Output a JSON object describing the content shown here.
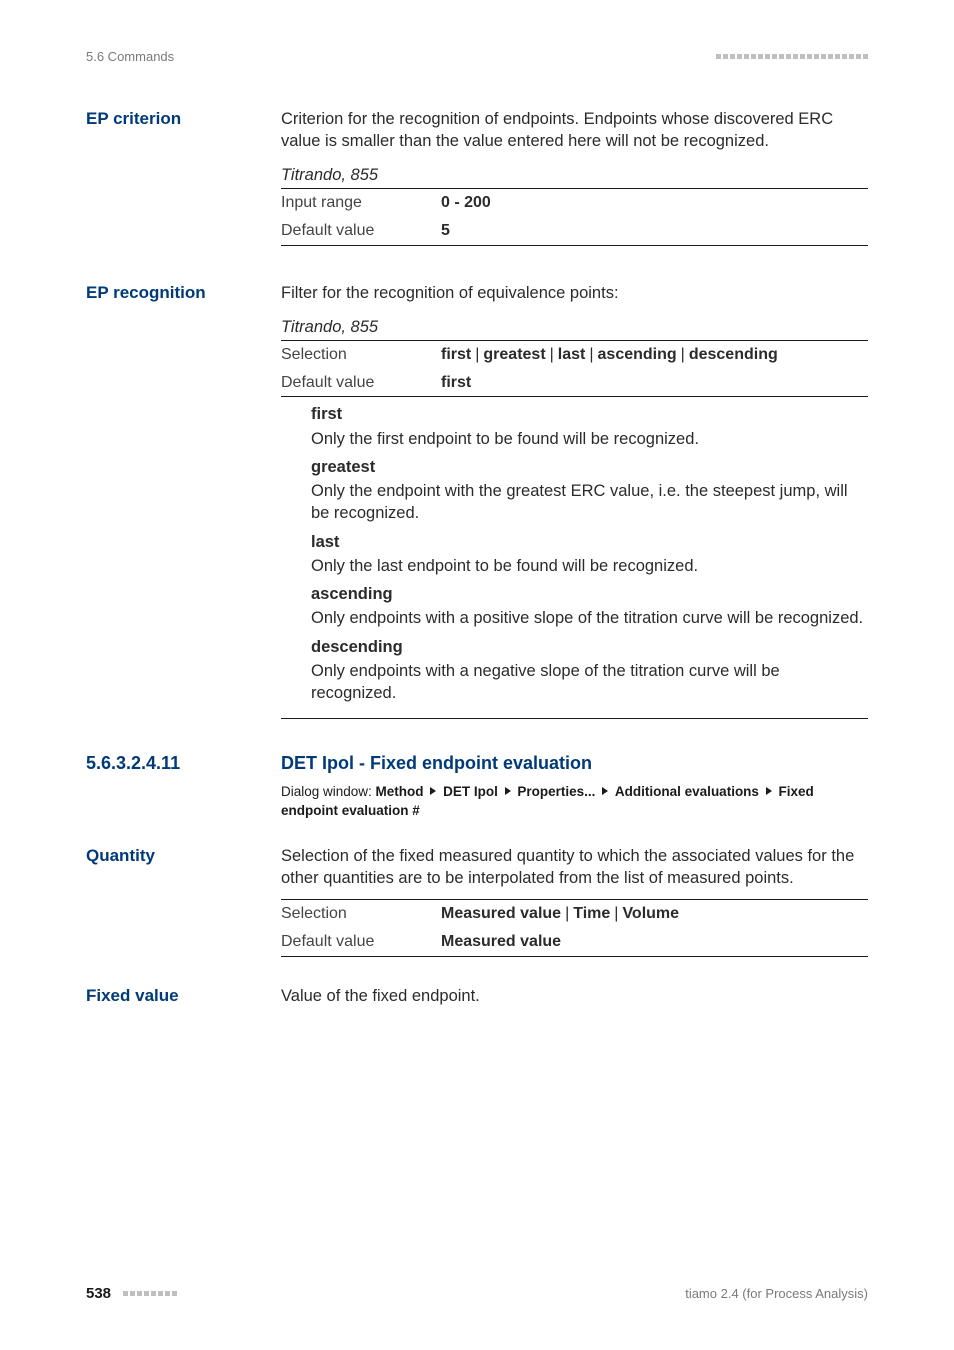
{
  "running_head_left": "5.6 Commands",
  "blocks": {
    "ep_criterion": {
      "heading": "EP criterion",
      "para": "Criterion for the recognition of endpoints. Endpoints whose discovered ERC value is smaller than the value entered here will not be recognized.",
      "table_caption": "Titrando, 855",
      "rows": [
        {
          "label": "Input range",
          "value": "0 - 200",
          "value_bold": true
        },
        {
          "label": "Default value",
          "value": "5",
          "value_bold": true
        }
      ]
    },
    "ep_recognition": {
      "heading": "EP recognition",
      "para": "Filter for the recognition of equivalence points:",
      "table_caption": "Titrando, 855",
      "rows": [
        {
          "label": "Selection",
          "values": [
            "first",
            "greatest",
            "last",
            "ascending",
            "descending"
          ]
        },
        {
          "label": "Default value",
          "value": "first",
          "value_bold": true
        }
      ],
      "defs": [
        {
          "term": "first",
          "defn": "Only the first endpoint to be found will be recognized."
        },
        {
          "term": "greatest",
          "defn": "Only the endpoint with the greatest ERC value, i.e. the steepest jump, will be recognized."
        },
        {
          "term": "last",
          "defn": "Only the last endpoint to be found will be recognized."
        },
        {
          "term": "ascending",
          "defn": "Only endpoints with a positive slope of the titration curve will be recognized."
        },
        {
          "term": "descending",
          "defn": "Only endpoints with a negative slope of the titration curve will be recognized."
        }
      ]
    },
    "section": {
      "number": "5.6.3.2.4.11",
      "title": "DET Ipol - Fixed endpoint evaluation",
      "dialog_parts": [
        "Method",
        "DET Ipol",
        "Properties...",
        "Additional evaluations",
        "Fixed endpoint evaluation #"
      ],
      "dialog_prefix": "Dialog window: "
    },
    "quantity": {
      "heading": "Quantity",
      "para": "Selection of the fixed measured quantity to which the associated values for the other quantities are to be interpolated from the list of measured points.",
      "rows": [
        {
          "label": "Selection",
          "values": [
            "Measured value",
            "Time",
            "Volume"
          ]
        },
        {
          "label": "Default value",
          "value": "Measured value",
          "value_bold": true
        }
      ]
    },
    "fixed_value": {
      "heading": "Fixed value",
      "para": "Value of the fixed endpoint."
    }
  },
  "footer": {
    "page": "538",
    "right": "tiamo 2.4 (for Process Analysis)"
  }
}
